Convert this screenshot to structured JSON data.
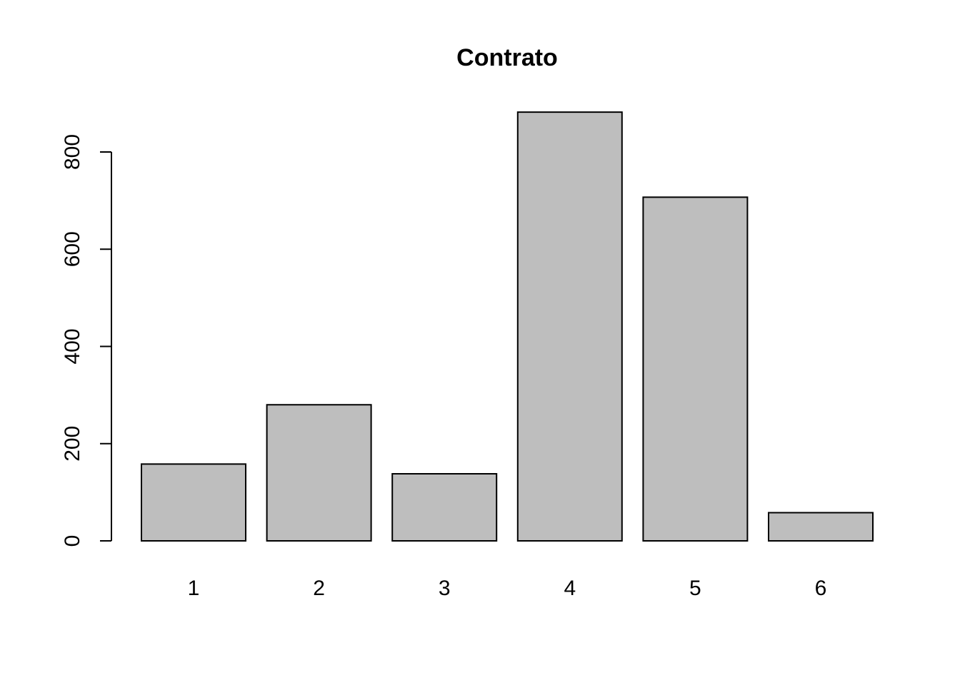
{
  "chart_data": {
    "type": "bar",
    "title": "Contrato",
    "xlabel": "",
    "ylabel": "",
    "categories": [
      "1",
      "2",
      "3",
      "4",
      "5",
      "6"
    ],
    "values": [
      158,
      280,
      138,
      882,
      707,
      58
    ],
    "ylim": [
      0,
      882
    ],
    "yticks": [
      0,
      200,
      400,
      600,
      800
    ],
    "ytick_labels": [
      "0",
      "200",
      "400",
      "600",
      "800"
    ],
    "bar_color": "#bebebe",
    "grid": false,
    "legend": "none"
  }
}
